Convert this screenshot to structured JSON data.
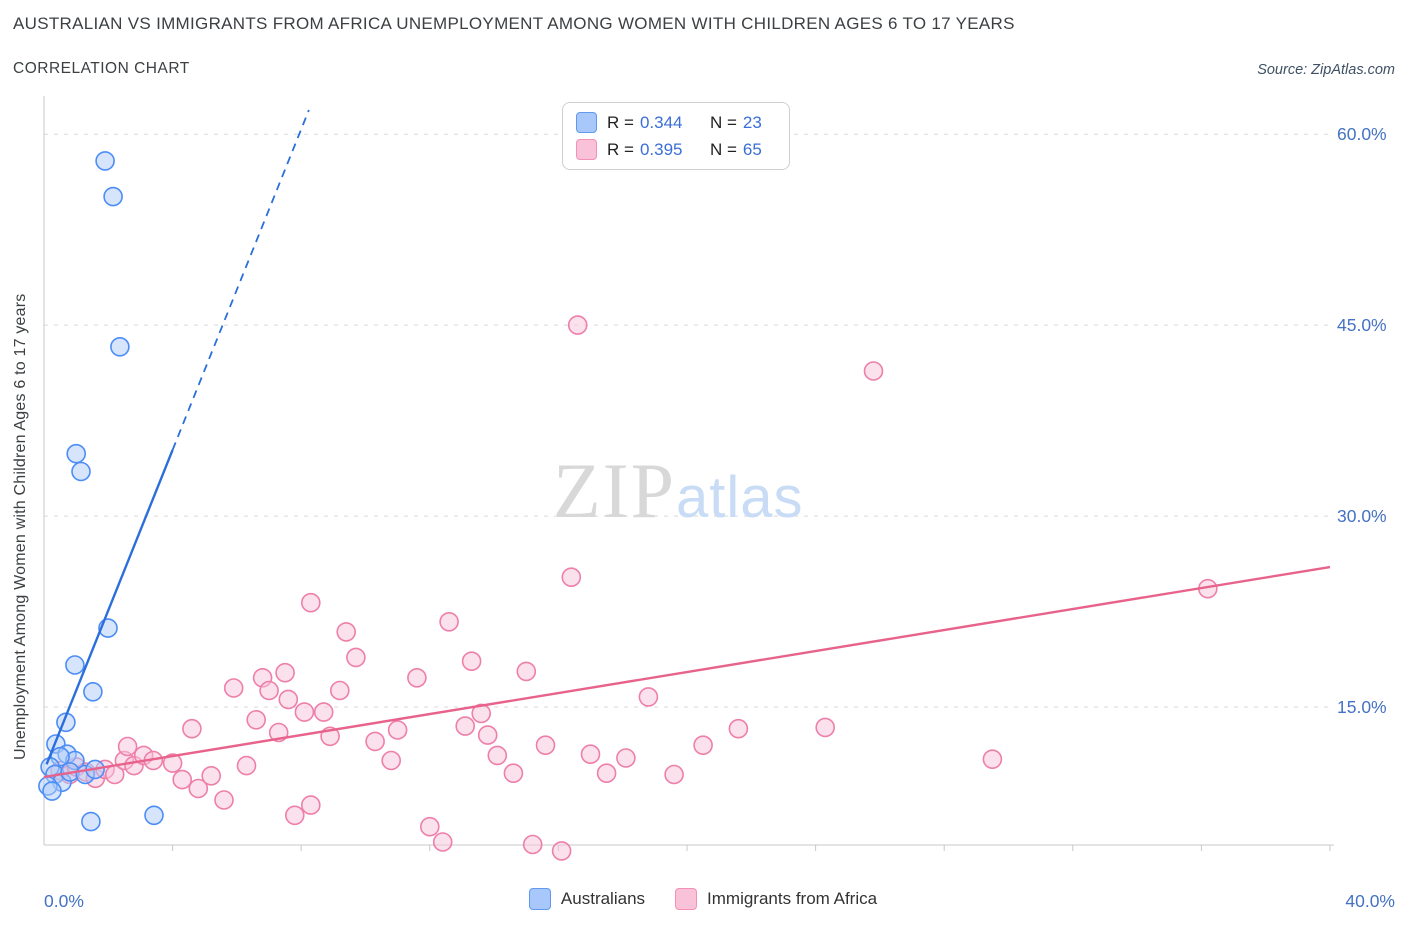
{
  "header": {
    "title": "AUSTRALIAN VS IMMIGRANTS FROM AFRICA UNEMPLOYMENT AMONG WOMEN WITH CHILDREN AGES 6 TO 17 YEARS",
    "subtitle": "CORRELATION CHART",
    "source": "Source: ZipAtlas.com"
  },
  "watermark": {
    "zip": "ZIP",
    "atlas": "atlas"
  },
  "axes": {
    "y_label": "Unemployment Among Women with Children Ages 6 to 17 years",
    "x_min_label": "0.0%",
    "x_max_label": "40.0%"
  },
  "stats_legend": {
    "rows": [
      {
        "series": "Australians",
        "r_label": "R =",
        "r": "0.344",
        "n_label": "N =",
        "n": "23"
      },
      {
        "series": "Immigrants from Africa",
        "r_label": "R =",
        "r": "0.395",
        "n_label": "N =",
        "n": "65"
      }
    ]
  },
  "bottom_legend": {
    "items": [
      {
        "label": "Australians"
      },
      {
        "label": "Immigrants from Africa"
      }
    ]
  },
  "colors": {
    "accent_blue": "#4472c4",
    "series_blue_fill": "#aecbfa",
    "series_blue_stroke": "#4c8df6",
    "series_pink_fill": "#f8c3da",
    "series_pink_stroke": "#ee7fa9",
    "trend_blue": "#2a6fdb",
    "trend_pink": "#e8638c",
    "grid": "#d9d9d9",
    "axis": "#c8c8c8"
  },
  "chart_data": {
    "type": "scatter",
    "title": "Australian vs Immigrants from Africa Unemployment Among Women with Children Ages 6 to 17 years",
    "xlabel": "",
    "ylabel": "Unemployment Among Women with Children Ages 6 to 17 years",
    "xlim": [
      0.0,
      0.4
    ],
    "ylim": [
      0.04,
      0.62
    ],
    "x_tick_step": 0.04,
    "grid": "horizontal-dashed",
    "legend_position": "top-center",
    "yticks": [
      {
        "v": 0.15,
        "label": "15.0%"
      },
      {
        "v": 0.3,
        "label": "30.0%"
      },
      {
        "v": 0.45,
        "label": "45.0%"
      },
      {
        "v": 0.6,
        "label": "60.0%"
      }
    ],
    "series": [
      {
        "name": "Australians",
        "r": 0.344,
        "n": 23,
        "fill": "#aecbfa",
        "stroke": "#4c8df6",
        "points": [
          [
            0.019,
            0.579
          ],
          [
            0.0215,
            0.551
          ],
          [
            0.0236,
            0.433
          ],
          [
            0.01,
            0.349
          ],
          [
            0.0115,
            0.335
          ],
          [
            0.0199,
            0.212
          ],
          [
            0.0096,
            0.183
          ],
          [
            0.0152,
            0.162
          ],
          [
            0.0068,
            0.138
          ],
          [
            0.0037,
            0.121
          ],
          [
            0.0072,
            0.113
          ],
          [
            0.0096,
            0.108
          ],
          [
            0.005,
            0.111
          ],
          [
            0.0019,
            0.103
          ],
          [
            0.0034,
            0.097
          ],
          [
            0.0056,
            0.091
          ],
          [
            0.0081,
            0.099
          ],
          [
            0.0128,
            0.097
          ],
          [
            0.0159,
            0.101
          ],
          [
            0.0012,
            0.088
          ],
          [
            0.0025,
            0.084
          ],
          [
            0.0146,
            0.06
          ],
          [
            0.0342,
            0.065
          ]
        ]
      },
      {
        "name": "Immigrants from Africa",
        "r": 0.395,
        "n": 65,
        "fill": "#f8c3da",
        "stroke": "#ee7fa9",
        "points": [
          [
            0.005,
            0.1
          ],
          [
            0.008,
            0.097
          ],
          [
            0.01,
            0.103
          ],
          [
            0.013,
            0.099
          ],
          [
            0.016,
            0.094
          ],
          [
            0.019,
            0.101
          ],
          [
            0.022,
            0.097
          ],
          [
            0.025,
            0.108
          ],
          [
            0.028,
            0.104
          ],
          [
            0.031,
            0.112
          ],
          [
            0.034,
            0.108
          ],
          [
            0.026,
            0.119
          ],
          [
            0.04,
            0.106
          ],
          [
            0.043,
            0.093
          ],
          [
            0.048,
            0.086
          ],
          [
            0.056,
            0.077
          ],
          [
            0.063,
            0.104
          ],
          [
            0.059,
            0.165
          ],
          [
            0.068,
            0.173
          ],
          [
            0.07,
            0.163
          ],
          [
            0.066,
            0.14
          ],
          [
            0.076,
            0.156
          ],
          [
            0.073,
            0.13
          ],
          [
            0.081,
            0.146
          ],
          [
            0.075,
            0.177
          ],
          [
            0.083,
            0.232
          ],
          [
            0.094,
            0.209
          ],
          [
            0.097,
            0.189
          ],
          [
            0.092,
            0.163
          ],
          [
            0.087,
            0.146
          ],
          [
            0.089,
            0.127
          ],
          [
            0.083,
            0.073
          ],
          [
            0.078,
            0.065
          ],
          [
            0.103,
            0.123
          ],
          [
            0.108,
            0.108
          ],
          [
            0.11,
            0.132
          ],
          [
            0.116,
            0.173
          ],
          [
            0.126,
            0.217
          ],
          [
            0.133,
            0.186
          ],
          [
            0.12,
            0.056
          ],
          [
            0.124,
            0.044
          ],
          [
            0.131,
            0.135
          ],
          [
            0.138,
            0.128
          ],
          [
            0.141,
            0.112
          ],
          [
            0.146,
            0.098
          ],
          [
            0.15,
            0.178
          ],
          [
            0.136,
            0.145
          ],
          [
            0.152,
            0.042
          ],
          [
            0.161,
            0.037
          ],
          [
            0.156,
            0.12
          ],
          [
            0.164,
            0.252
          ],
          [
            0.166,
            0.45
          ],
          [
            0.17,
            0.113
          ],
          [
            0.175,
            0.098
          ],
          [
            0.181,
            0.11
          ],
          [
            0.188,
            0.158
          ],
          [
            0.196,
            0.097
          ],
          [
            0.205,
            0.12
          ],
          [
            0.216,
            0.133
          ],
          [
            0.243,
            0.134
          ],
          [
            0.258,
            0.414
          ],
          [
            0.295,
            0.109
          ],
          [
            0.362,
            0.243
          ],
          [
            0.052,
            0.096
          ],
          [
            0.046,
            0.133
          ]
        ]
      }
    ],
    "trends": [
      {
        "series": "Australians",
        "color": "#2a6fdb",
        "solid": [
          [
            0.0008,
            0.105
          ],
          [
            0.04,
            0.352
          ]
        ],
        "dashed": [
          [
            0.04,
            0.352
          ],
          [
            0.0824,
            0.619
          ]
        ]
      },
      {
        "series": "Immigrants from Africa",
        "color": "#e8638c",
        "solid": [
          [
            0.0,
            0.095
          ],
          [
            0.4,
            0.26
          ]
        ]
      }
    ]
  }
}
